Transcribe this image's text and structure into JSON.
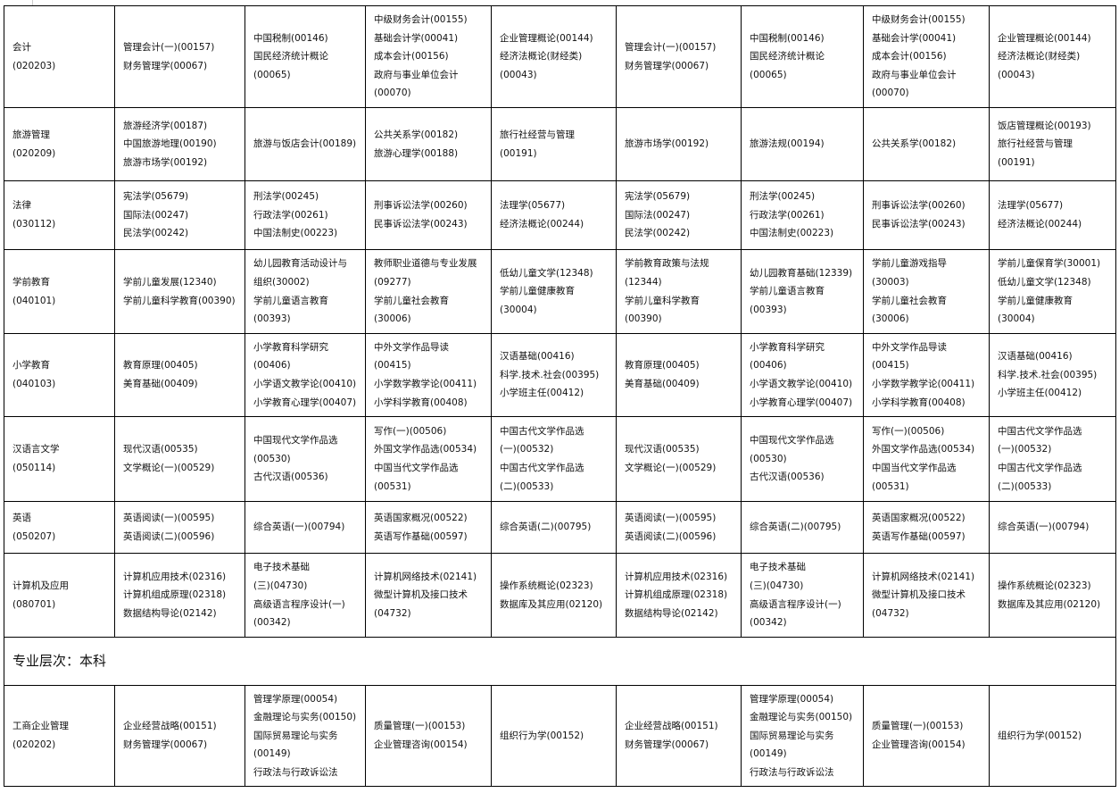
{
  "section_label": "专业层次：本科",
  "rows_before_section": [
    [
      [
        "会计",
        "(020203)"
      ],
      [
        "管理会计(一)(00157)",
        "财务管理学(00067)"
      ],
      [
        "中国税制(00146)",
        "国民经济统计概论",
        "(00065)"
      ],
      [
        "中级财务会计(00155)",
        "基础会计学(00041)",
        "成本会计(00156)",
        "政府与事业单位会计",
        "(00070)"
      ],
      [
        "企业管理概论(00144)",
        "经济法概论(财经类)",
        "(00043)"
      ],
      [
        "管理会计(一)(00157)",
        "财务管理学(00067)"
      ],
      [
        "中国税制(00146)",
        "国民经济统计概论",
        "(00065)"
      ],
      [
        "中级财务会计(00155)",
        "基础会计学(00041)",
        "成本会计(00156)",
        "政府与事业单位会计",
        "(00070)"
      ],
      [
        "企业管理概论(00144)",
        "经济法概论(财经类)",
        "(00043)"
      ]
    ],
    [
      [
        "旅游管理",
        "(020209)"
      ],
      [
        "旅游经济学(00187)",
        "中国旅游地理(00190)",
        "旅游市场学(00192)"
      ],
      [
        "旅游与饭店会计(00189)"
      ],
      [
        "公共关系学(00182)",
        "旅游心理学(00188)"
      ],
      [
        "旅行社经营与管理",
        "(00191)"
      ],
      [
        "旅游市场学(00192)"
      ],
      [
        "旅游法规(00194)"
      ],
      [
        "公共关系学(00182)"
      ],
      [
        "饭店管理概论(00193)",
        "旅行社经营与管理",
        "(00191)"
      ]
    ],
    [
      [
        "法律",
        "(030112)"
      ],
      [
        "宪法学(05679)",
        "国际法(00247)",
        "民法学(00242)"
      ],
      [
        "刑法学(00245)",
        "行政法学(00261)",
        "中国法制史(00223)"
      ],
      [
        "刑事诉讼法学(00260)",
        "民事诉讼法学(00243)"
      ],
      [
        "法理学(05677)",
        "经济法概论(00244)"
      ],
      [
        "宪法学(05679)",
        "国际法(00247)",
        "民法学(00242)"
      ],
      [
        "刑法学(00245)",
        "行政法学(00261)",
        "中国法制史(00223)"
      ],
      [
        "刑事诉讼法学(00260)",
        "民事诉讼法学(00243)"
      ],
      [
        "法理学(05677)",
        "经济法概论(00244)"
      ]
    ],
    [
      [
        "学前教育",
        "(040101)"
      ],
      [
        "学前儿童发展(12340)",
        "学前儿童科学教育(00390)"
      ],
      [
        "幼儿园教育活动设计与",
        "组织(30002)",
        "学前儿童语言教育",
        "(00393)"
      ],
      [
        "教师职业道德与专业发展",
        "(09277)",
        "学前儿童社会教育",
        "(30006)"
      ],
      [
        "低幼儿童文学(12348)",
        "学前儿童健康教育",
        "(30004)"
      ],
      [
        "学前教育政策与法规",
        "(12344)",
        "学前儿童科学教育",
        "(00390)"
      ],
      [
        "幼儿园教育基础(12339)",
        "学前儿童语言教育",
        "(00393)"
      ],
      [
        "学前儿童游戏指导",
        "(30003)",
        "学前儿童社会教育",
        "(30006)"
      ],
      [
        "学前儿童保育学(30001)",
        "低幼儿童文学(12348)",
        "学前儿童健康教育",
        "(30004)"
      ]
    ],
    [
      [
        "小学教育",
        "(040103)"
      ],
      [
        "教育原理(00405)",
        "美育基础(00409)"
      ],
      [
        "小学教育科学研究",
        "(00406)",
        "小学语文教学论(00410)",
        "小学教育心理学(00407)"
      ],
      [
        "中外文学作品导读",
        "(00415)",
        "小学数学教学论(00411)",
        "小学科学教育(00408)"
      ],
      [
        "汉语基础(00416)",
        "科学.技术.社会(00395)",
        "小学班主任(00412)"
      ],
      [
        "教育原理(00405)",
        "美育基础(00409)"
      ],
      [
        "小学教育科学研究",
        "(00406)",
        "小学语文教学论(00410)",
        "小学教育心理学(00407)"
      ],
      [
        "中外文学作品导读",
        "(00415)",
        "小学数学教学论(00411)",
        "小学科学教育(00408)"
      ],
      [
        "汉语基础(00416)",
        "科学.技术.社会(00395)",
        "小学班主任(00412)"
      ]
    ],
    [
      [
        "汉语言文学",
        "(050114)"
      ],
      [
        "现代汉语(00535)",
        "文学概论(一)(00529)"
      ],
      [
        "中国现代文学作品选",
        "(00530)",
        "古代汉语(00536)"
      ],
      [
        "写作(一)(00506)",
        "外国文学作品选(00534)",
        "中国当代文学作品选",
        "(00531)"
      ],
      [
        "中国古代文学作品选",
        "(一)(00532)",
        "中国古代文学作品选",
        "(二)(00533)"
      ],
      [
        "现代汉语(00535)",
        "文学概论(一)(00529)"
      ],
      [
        "中国现代文学作品选",
        "(00530)",
        "古代汉语(00536)"
      ],
      [
        "写作(一)(00506)",
        "外国文学作品选(00534)",
        "中国当代文学作品选",
        "(00531)"
      ],
      [
        "中国古代文学作品选",
        "(一)(00532)",
        "中国古代文学作品选",
        "(二)(00533)"
      ]
    ],
    [
      [
        "英语",
        "(050207)"
      ],
      [
        "英语阅读(一)(00595)",
        "英语阅读(二)(00596)"
      ],
      [
        "综合英语(一)(00794)"
      ],
      [
        "英语国家概况(00522)",
        "英语写作基础(00597)"
      ],
      [
        "综合英语(二)(00795)"
      ],
      [
        "英语阅读(一)(00595)",
        "英语阅读(二)(00596)"
      ],
      [
        "综合英语(二)(00795)"
      ],
      [
        "英语国家概况(00522)",
        "英语写作基础(00597)"
      ],
      [
        "综合英语(一)(00794)"
      ]
    ],
    [
      [
        "计算机及应用",
        "(080701)"
      ],
      [
        "计算机应用技术(02316)",
        "计算机组成原理(02318)",
        "数据结构导论(02142)"
      ],
      [
        "电子技术基础",
        "(三)(04730)",
        "高级语言程序设计(一)",
        "(00342)"
      ],
      [
        "计算机网络技术(02141)",
        "微型计算机及接口技术",
        "(04732)"
      ],
      [
        "操作系统概论(02323)",
        "数据库及其应用(02120)"
      ],
      [
        "计算机应用技术(02316)",
        "计算机组成原理(02318)",
        "数据结构导论(02142)"
      ],
      [
        "电子技术基础",
        "(三)(04730)",
        "高级语言程序设计(一)",
        "(00342)"
      ],
      [
        "计算机网络技术(02141)",
        "微型计算机及接口技术",
        "(04732)"
      ],
      [
        "操作系统概论(02323)",
        "数据库及其应用(02120)"
      ]
    ]
  ],
  "rows_after_section": [
    [
      [
        "工商企业管理",
        "(020202)"
      ],
      [
        "企业经营战略(00151)",
        "财务管理学(00067)"
      ],
      [
        "管理学原理(00054)",
        "金融理论与实务(00150)",
        "国际贸易理论与实务",
        "(00149)",
        "行政法与行政诉讼法"
      ],
      [
        "质量管理(一)(00153)",
        "企业管理咨询(00154)"
      ],
      [
        "组织行为学(00152)"
      ],
      [
        "企业经营战略(00151)",
        "财务管理学(00067)"
      ],
      [
        "管理学原理(00054)",
        "金融理论与实务(00150)",
        "国际贸易理论与实务",
        "(00149)",
        "行政法与行政诉讼法"
      ],
      [
        "质量管理(一)(00153)",
        "企业管理咨询(00154)"
      ],
      [
        "组织行为学(00152)"
      ]
    ]
  ]
}
